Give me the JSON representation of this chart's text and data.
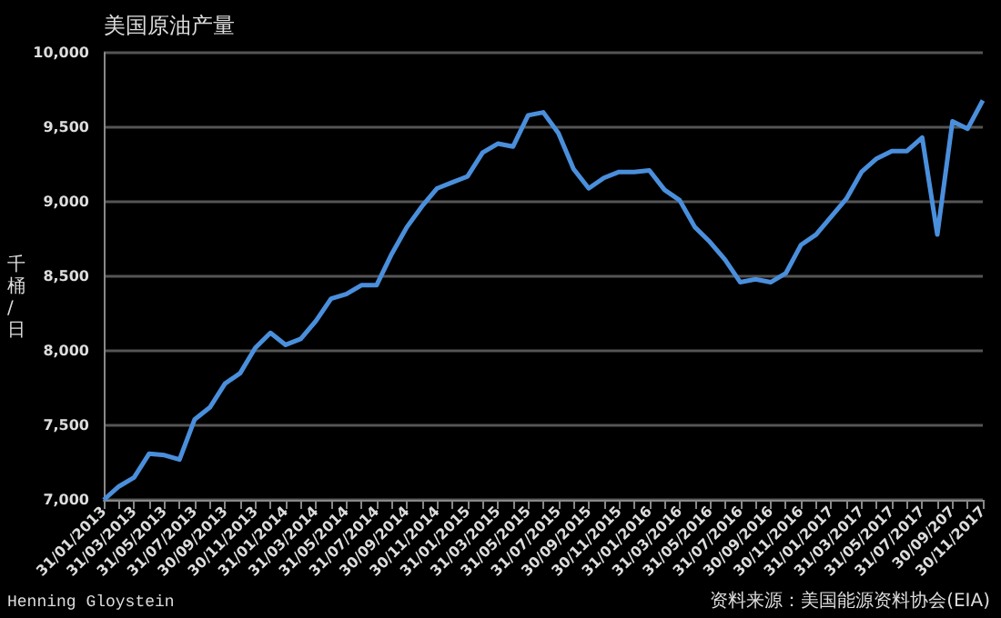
{
  "chart_data": {
    "type": "line",
    "title": "美国原油产量",
    "ylabel": "千桶/日",
    "annotations": [
      "Henning Gloystein",
      "资料来源：美国能源资料协会(EIA)"
    ],
    "categories": [
      "31/01/2013",
      null,
      "31/03/2013",
      null,
      "31/05/2013",
      null,
      "31/07/2013",
      null,
      "30/09/2013",
      null,
      "30/11/2013",
      null,
      "31/01/2014",
      null,
      "31/03/2014",
      null,
      "31/05/2014",
      null,
      "31/07/2014",
      null,
      "30/09/2014",
      null,
      "30/11/2014",
      null,
      "31/01/2015",
      null,
      "31/03/2015",
      null,
      "31/05/2015",
      null,
      "31/07/2015",
      null,
      "30/09/2015",
      null,
      "30/11/2015",
      null,
      "31/01/2016",
      null,
      "31/03/2016",
      null,
      "31/05/2016",
      null,
      "31/07/2016",
      null,
      "30/09/2016",
      null,
      "30/11/2016",
      null,
      "31/01/2017",
      null,
      "31/03/2017",
      null,
      "31/05/2017",
      null,
      "31/07/2017",
      null,
      "30/09/207",
      null,
      "30/11/2017"
    ],
    "series": [
      {
        "color": "#4a8fdc",
        "values": [
          7000,
          7090,
          7150,
          7310,
          7300,
          7270,
          7540,
          7620,
          7780,
          7850,
          8020,
          8120,
          8040,
          8080,
          8200,
          8350,
          8380,
          8440,
          8440,
          8650,
          8830,
          8970,
          9090,
          9130,
          9170,
          9330,
          9390,
          9370,
          9580,
          9600,
          9460,
          9220,
          9090,
          9160,
          9200,
          9200,
          9210,
          9080,
          9010,
          8830,
          8730,
          8610,
          8460,
          8480,
          8460,
          8520,
          8710,
          8780,
          8900,
          9020,
          9200,
          9290,
          9340,
          9340,
          9430,
          8780,
          9540,
          9490,
          9680
        ]
      }
    ],
    "ylim": [
      7000,
      10000
    ],
    "yticks": [
      {
        "value": 7000,
        "label": "7,000"
      },
      {
        "value": 7500,
        "label": "7,500"
      },
      {
        "value": 8000,
        "label": "8,000"
      },
      {
        "value": 8500,
        "label": "8,500"
      },
      {
        "value": 9000,
        "label": "9,000"
      },
      {
        "value": 9500,
        "label": "9,500"
      },
      {
        "value": 10000,
        "label": "10,000"
      }
    ],
    "grid": "y",
    "marker": "none",
    "line_style": "solid"
  }
}
